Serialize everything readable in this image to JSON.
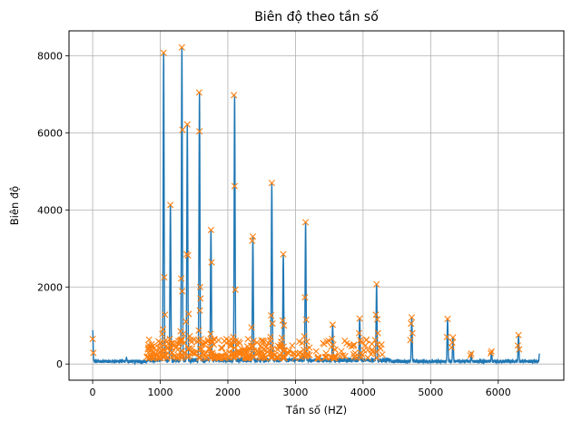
{
  "chart_data": {
    "type": "line",
    "title": "Biên độ theo tần số",
    "xlabel": "Tần số (HZ)",
    "ylabel": "Biên độ",
    "xlim": [
      -350,
      6970
    ],
    "ylim": [
      -420,
      8650
    ],
    "x_ticks": [
      0,
      1000,
      2000,
      3000,
      4000,
      5000,
      6000
    ],
    "y_ticks": [
      0,
      2000,
      4000,
      6000,
      8000
    ],
    "grid": true,
    "colors": {
      "line": "#1f77b4",
      "markers": "#ff7f0e",
      "grid": "#b0b0b0"
    },
    "series": [
      {
        "type": "line",
        "x_range": [
          0,
          6610
        ],
        "baseline": 70,
        "peaks": [
          {
            "x": 0,
            "y": 880
          },
          {
            "x": 500,
            "y": 170
          },
          {
            "x": 1050,
            "y": 8100
          },
          {
            "x": 1150,
            "y": 4130
          },
          {
            "x": 1320,
            "y": 8230
          },
          {
            "x": 1400,
            "y": 6200
          },
          {
            "x": 1580,
            "y": 7050
          },
          {
            "x": 1750,
            "y": 3480
          },
          {
            "x": 2100,
            "y": 6980
          },
          {
            "x": 2370,
            "y": 3300
          },
          {
            "x": 2650,
            "y": 4680
          },
          {
            "x": 2820,
            "y": 2840
          },
          {
            "x": 3150,
            "y": 3660
          },
          {
            "x": 3550,
            "y": 1000
          },
          {
            "x": 3950,
            "y": 1200
          },
          {
            "x": 4200,
            "y": 2060
          },
          {
            "x": 4720,
            "y": 1200
          },
          {
            "x": 5250,
            "y": 1170
          },
          {
            "x": 5330,
            "y": 700
          },
          {
            "x": 5600,
            "y": 280
          },
          {
            "x": 5900,
            "y": 350
          },
          {
            "x": 6300,
            "y": 740
          },
          {
            "x": 6610,
            "y": 270
          }
        ]
      },
      {
        "type": "scatter",
        "marker": "x",
        "points": [
          [
            0,
            650
          ],
          [
            10,
            290
          ],
          [
            1050,
            8080
          ],
          [
            1060,
            2250
          ],
          [
            1070,
            1280
          ],
          [
            1040,
            900
          ],
          [
            1030,
            780
          ],
          [
            1080,
            620
          ],
          [
            1150,
            4130
          ],
          [
            1140,
            650
          ],
          [
            1170,
            520
          ],
          [
            1320,
            8220
          ],
          [
            1330,
            6080
          ],
          [
            1310,
            2220
          ],
          [
            1325,
            1890
          ],
          [
            1300,
            850
          ],
          [
            1340,
            780
          ],
          [
            1290,
            600
          ],
          [
            1390,
            2850
          ],
          [
            1400,
            6220
          ],
          [
            1410,
            2820
          ],
          [
            1420,
            1300
          ],
          [
            1380,
            1100
          ],
          [
            1435,
            720
          ],
          [
            1575,
            7050
          ],
          [
            1580,
            6040
          ],
          [
            1590,
            2000
          ],
          [
            1595,
            1700
          ],
          [
            1585,
            1390
          ],
          [
            1570,
            870
          ],
          [
            1600,
            650
          ],
          [
            1750,
            3480
          ],
          [
            1760,
            2640
          ],
          [
            1745,
            780
          ],
          [
            1770,
            560
          ],
          [
            2090,
            6980
          ],
          [
            2100,
            4620
          ],
          [
            2110,
            1930
          ],
          [
            2080,
            700
          ],
          [
            2120,
            600
          ],
          [
            2370,
            3310
          ],
          [
            2360,
            3200
          ],
          [
            2350,
            950
          ],
          [
            2380,
            600
          ],
          [
            2650,
            4700
          ],
          [
            2640,
            1260
          ],
          [
            2660,
            1050
          ],
          [
            2630,
            700
          ],
          [
            2820,
            2850
          ],
          [
            2810,
            1130
          ],
          [
            2830,
            1000
          ],
          [
            2800,
            680
          ],
          [
            3150,
            3680
          ],
          [
            3140,
            1730
          ],
          [
            3160,
            1150
          ],
          [
            3130,
            720
          ],
          [
            3170,
            580
          ],
          [
            3550,
            1020
          ],
          [
            3540,
            650
          ],
          [
            3560,
            500
          ],
          [
            3950,
            1180
          ],
          [
            3940,
            800
          ],
          [
            3960,
            620
          ],
          [
            4200,
            2070
          ],
          [
            4190,
            1280
          ],
          [
            4210,
            1160
          ],
          [
            4220,
            800
          ],
          [
            4180,
            620
          ],
          [
            4720,
            1210
          ],
          [
            4710,
            1050
          ],
          [
            4730,
            800
          ],
          [
            4700,
            620
          ],
          [
            5250,
            1170
          ],
          [
            5240,
            700
          ],
          [
            5330,
            690
          ],
          [
            5320,
            560
          ],
          [
            5310,
            430
          ],
          [
            5600,
            270
          ],
          [
            5590,
            220
          ],
          [
            5900,
            330
          ],
          [
            5890,
            280
          ],
          [
            6300,
            750
          ],
          [
            6290,
            480
          ],
          [
            6310,
            380
          ]
        ],
        "dense_cluster": {
          "x_range": [
            800,
            4300
          ],
          "y_range": [
            150,
            650
          ]
        }
      }
    ]
  }
}
